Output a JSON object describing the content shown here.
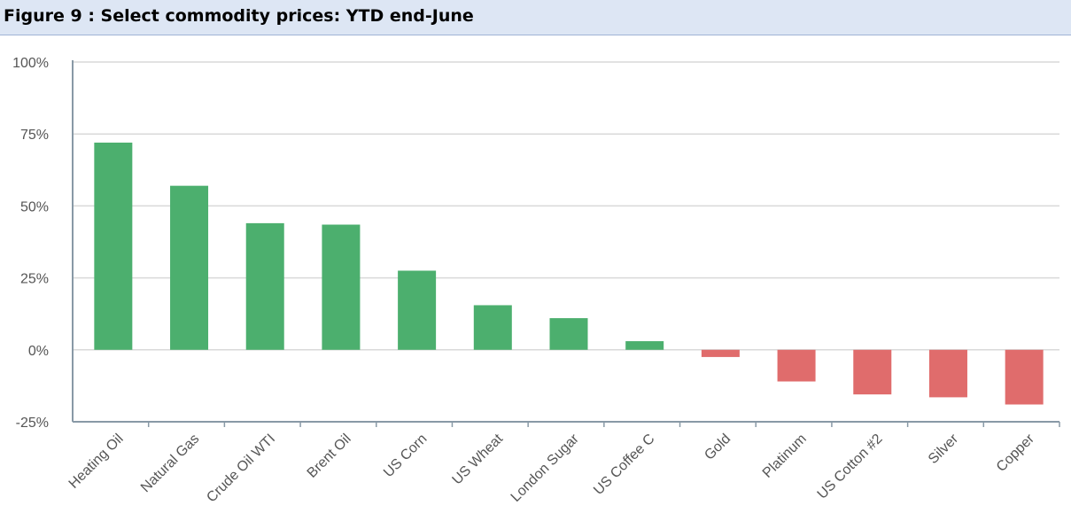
{
  "figure_title": "Figure 9 : Select commodity prices: YTD end-June",
  "colors": {
    "positive": "#4caf6e",
    "negative": "#e06c6c",
    "grid": "#d9d9d9",
    "axis": "#8899a6",
    "header_bg": "#dde6f4"
  },
  "chart_data": {
    "type": "bar",
    "title": "",
    "xlabel": "",
    "ylabel": "",
    "ylim": [
      -25,
      100
    ],
    "yticks": [
      -25,
      0,
      25,
      50,
      75,
      100
    ],
    "ytick_labels": [
      "-25%",
      "0%",
      "25%",
      "50%",
      "75%",
      "100%"
    ],
    "grid": true,
    "categories": [
      "Heating Oil",
      "Natural Gas",
      "Crude Oil WTI",
      "Brent Oil",
      "US Corn",
      "US Wheat",
      "London Sugar",
      "US Coffee C",
      "Gold",
      "Platinum",
      "US Cotton #2",
      "Silver",
      "Copper"
    ],
    "values": [
      72,
      57,
      44,
      43.5,
      27.5,
      15.5,
      11,
      3,
      -2.5,
      -11,
      -15.5,
      -16.5,
      -19
    ]
  }
}
